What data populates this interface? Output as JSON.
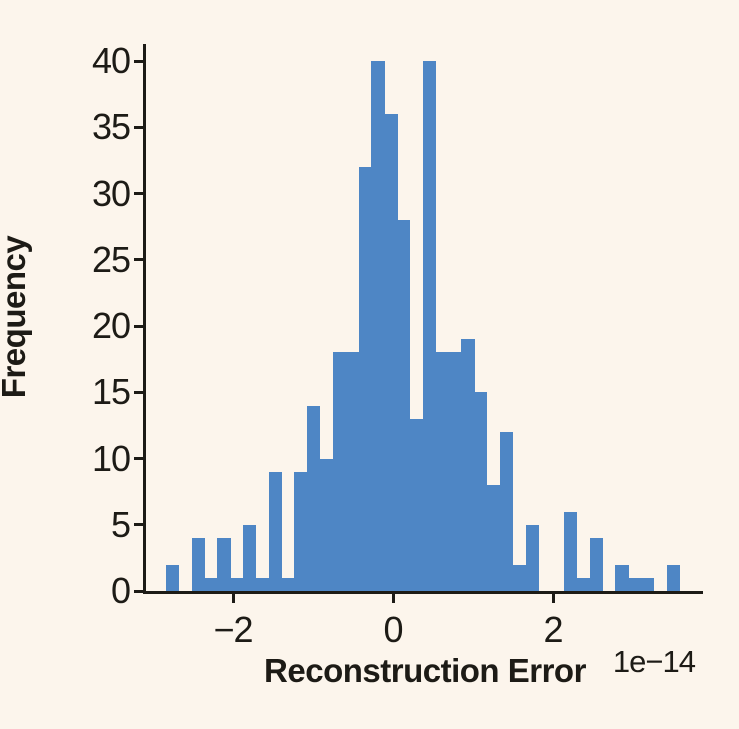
{
  "chart_data": {
    "type": "bar",
    "subtype": "histogram",
    "title": "",
    "xlabel": "Reconstruction Error",
    "ylabel": "Frequency",
    "x_offset_label": "1e−14",
    "x_unit_note": "x tick values are multiplied by 1e-14",
    "bin_start": -2.8375,
    "bin_width": 0.1605,
    "counts": [
      2,
      0,
      4,
      1,
      4,
      1,
      5,
      1,
      9,
      1,
      9,
      14,
      10,
      18,
      18,
      32,
      40,
      36,
      28,
      13,
      40,
      18,
      18,
      19,
      15,
      8,
      12,
      2,
      5,
      0,
      0,
      6,
      1,
      4,
      0,
      2,
      1,
      1,
      0,
      2
    ],
    "xticks": [
      {
        "value": -2,
        "label": "−2"
      },
      {
        "value": 0,
        "label": "0"
      },
      {
        "value": 2,
        "label": "2"
      }
    ],
    "yticks": [
      {
        "value": 0,
        "label": "0"
      },
      {
        "value": 5,
        "label": "5"
      },
      {
        "value": 10,
        "label": "10"
      },
      {
        "value": 15,
        "label": "15"
      },
      {
        "value": 20,
        "label": "20"
      },
      {
        "value": 25,
        "label": "25"
      },
      {
        "value": 30,
        "label": "30"
      },
      {
        "value": 35,
        "label": "35"
      },
      {
        "value": 40,
        "label": "40"
      }
    ],
    "xlim": [
      -3.0875,
      3.8375
    ],
    "ylim": [
      0,
      41.28
    ],
    "grid": false,
    "legend": null,
    "bar_color": "#4e86c5",
    "background_color": "#fcf5ec",
    "axis_color": "#1d1b16"
  }
}
